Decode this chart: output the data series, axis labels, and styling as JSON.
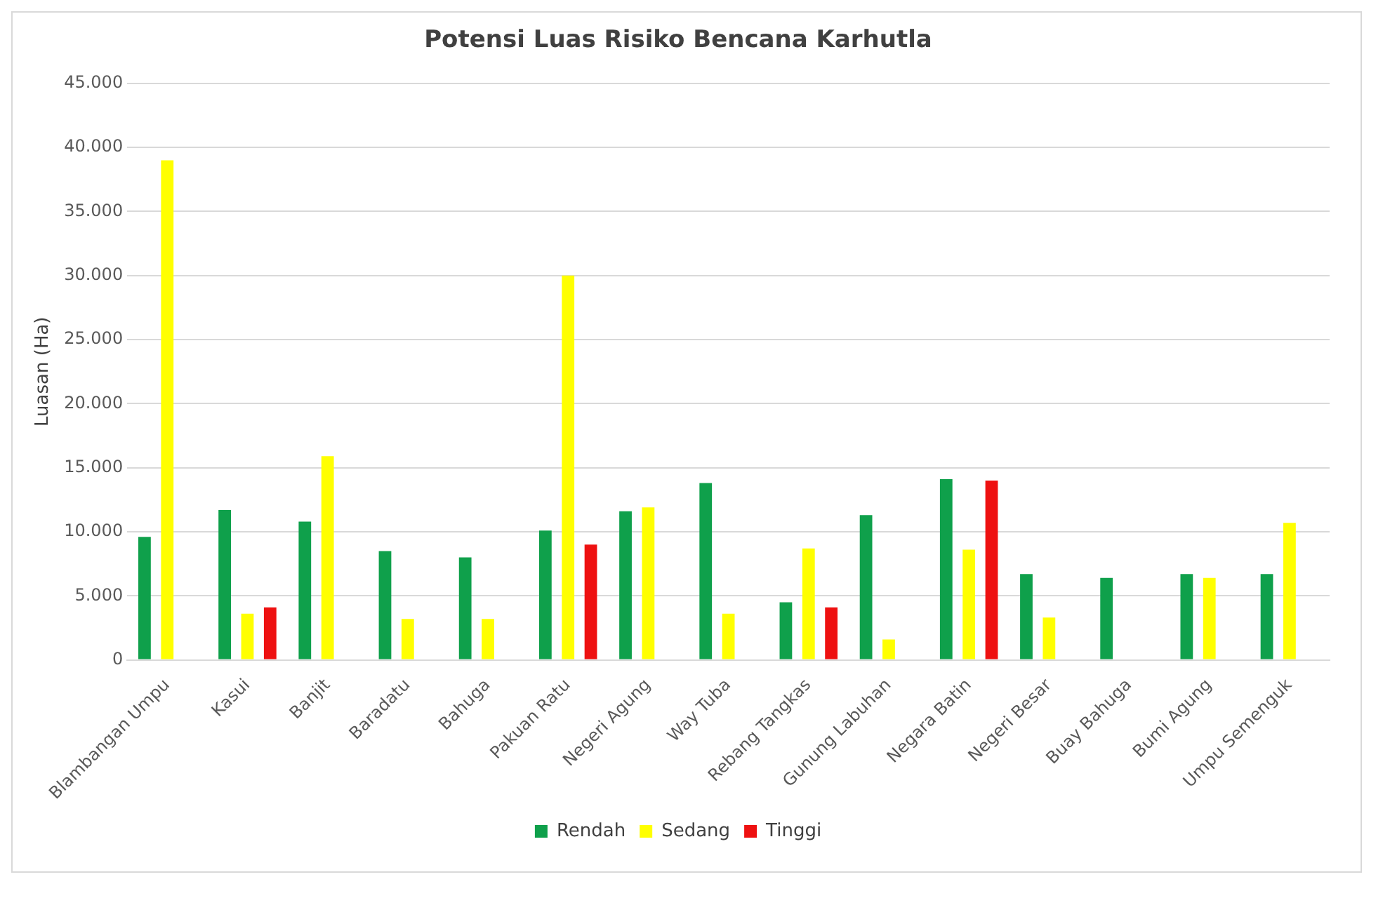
{
  "chart_data": {
    "type": "bar",
    "title": "Potensi Luas Risiko Bencana Karhutla",
    "ylabel": "Luasan (Ha)",
    "categories": [
      "Blambangan Umpu",
      "Kasui",
      "Banjit",
      "Baradatu",
      "Bahuga",
      "Pakuan Ratu",
      "Negeri Agung",
      "Way Tuba",
      "Rebang Tangkas",
      "Gunung Labuhan",
      "Negara Batin",
      "Negeri Besar",
      "Buay Bahuga",
      "Bumi Agung",
      "Umpu Semenguk"
    ],
    "series": [
      {
        "name": "Rendah",
        "color": "#0fa04b",
        "values": [
          9600,
          11700,
          10800,
          8500,
          8000,
          10100,
          11600,
          13800,
          4500,
          11300,
          14100,
          6700,
          6400,
          6700,
          6700
        ]
      },
      {
        "name": "Sedang",
        "color": "#ffff00",
        "values": [
          39000,
          3600,
          15900,
          3200,
          3200,
          30000,
          11900,
          3600,
          8700,
          1600,
          8600,
          3300,
          0,
          6400,
          10700
        ]
      },
      {
        "name": "Tinggi",
        "color": "#ee1111",
        "values": [
          null,
          4100,
          null,
          null,
          null,
          9000,
          null,
          null,
          4100,
          null,
          14000,
          null,
          null,
          null,
          null
        ]
      }
    ],
    "ylim": [
      0,
      45000
    ],
    "yticks": [
      {
        "value": 0,
        "label": "0"
      },
      {
        "value": 5000,
        "label": "5.000"
      },
      {
        "value": 10000,
        "label": "10.000"
      },
      {
        "value": 15000,
        "label": "15.000"
      },
      {
        "value": 20000,
        "label": "20.000"
      },
      {
        "value": 25000,
        "label": "25.000"
      },
      {
        "value": 30000,
        "label": "30.000"
      },
      {
        "value": 35000,
        "label": "35.000"
      },
      {
        "value": 40000,
        "label": "40.000"
      },
      {
        "value": 45000,
        "label": "45.000"
      }
    ],
    "grid": "y",
    "legend": "bottom"
  }
}
